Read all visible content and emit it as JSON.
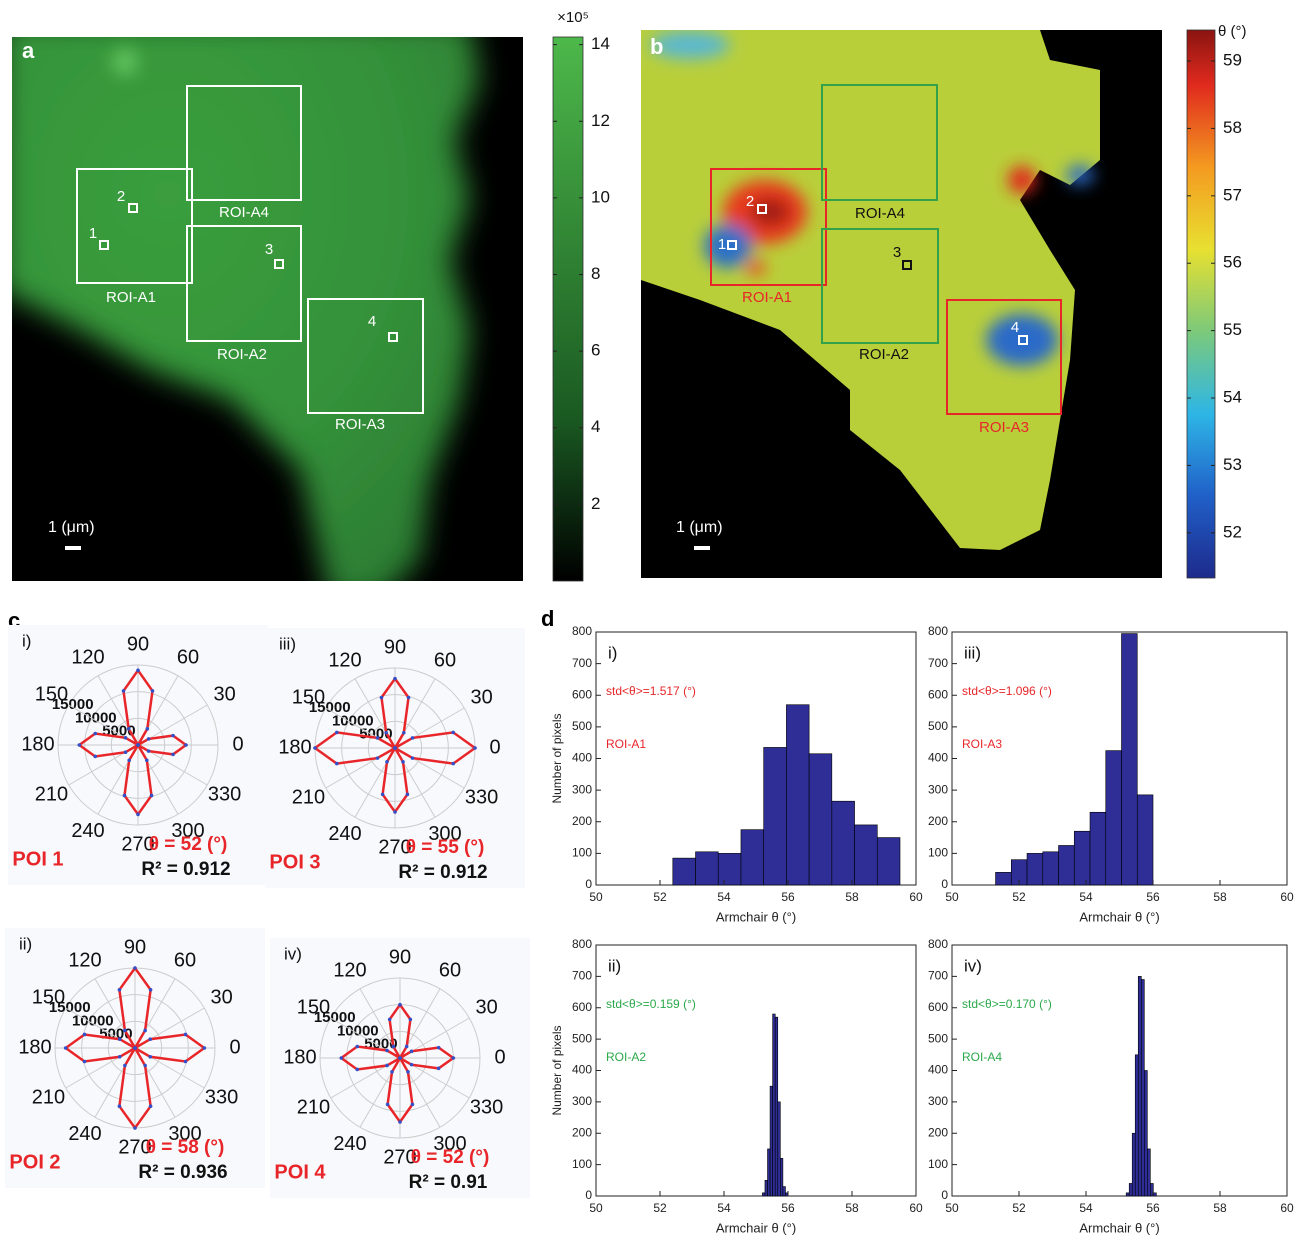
{
  "panel_labels": [
    "a",
    "b",
    "c",
    "d"
  ],
  "image_panels": [
    {
      "scale_bar": "1 (μm)",
      "rois": [
        "ROI-A1",
        "ROI-A2",
        "ROI-A3",
        "ROI-A4"
      ],
      "pois": [
        "1",
        "2",
        "3",
        "4"
      ],
      "colorbar": {
        "label": "×10⁵",
        "lim": [
          0,
          14.2
        ],
        "ticks": [
          2,
          4,
          6,
          8,
          10,
          12,
          14
        ]
      }
    },
    {
      "scale_bar": "1 (μm)",
      "rois": [
        "ROI-A1",
        "ROI-A2",
        "ROI-A3",
        "ROI-A4"
      ],
      "pois": [
        "1",
        "2",
        "3",
        "4"
      ],
      "colorbar": {
        "label": "θ (°)",
        "lim": [
          51.33,
          59.46
        ],
        "ticks": [
          52,
          53,
          54,
          55,
          56,
          57,
          58,
          59
        ]
      }
    }
  ],
  "chart_data": [
    {
      "type": "polar",
      "panel": "i)",
      "title": "POI 1",
      "annotations": [
        "θ = 52 (°)",
        "R² = 0.912"
      ],
      "color": "#e8262a",
      "angles": [
        0,
        15,
        30,
        45,
        60,
        75,
        90,
        105,
        120,
        135,
        150,
        165,
        180,
        195,
        210,
        225,
        240,
        255,
        270,
        285,
        300,
        315,
        330,
        345
      ],
      "values": [
        9000,
        6800,
        2300,
        0,
        3500,
        10500,
        14000,
        10500,
        3500,
        0,
        2700,
        8300,
        11000,
        8300,
        2700,
        0,
        3300,
        9800,
        13000,
        9800,
        3300,
        0,
        2300,
        6800
      ],
      "angle_ticks": [
        0,
        30,
        60,
        90,
        120,
        150,
        180,
        210,
        240,
        270,
        300,
        330
      ],
      "rlim": [
        0,
        15000
      ],
      "rticks": [
        5000,
        10000,
        15000
      ]
    },
    {
      "type": "polar",
      "panel": "ii)",
      "title": "POI 2",
      "annotations": [
        "θ = 58 (°)",
        "R² = 0.936"
      ],
      "color": "#e8262a",
      "angles": [
        0,
        15,
        30,
        45,
        60,
        75,
        90,
        105,
        120,
        135,
        150,
        165,
        180,
        195,
        210,
        225,
        240,
        255,
        270,
        285,
        300,
        315,
        330,
        345
      ],
      "values": [
        13000,
        9800,
        3300,
        0,
        3800,
        11300,
        15000,
        11300,
        3800,
        0,
        3300,
        9800,
        13000,
        9800,
        3300,
        0,
        3800,
        11300,
        15000,
        11300,
        3800,
        0,
        3300,
        9800
      ],
      "angle_ticks": [
        0,
        30,
        60,
        90,
        120,
        150,
        180,
        210,
        240,
        270,
        300,
        330
      ],
      "rlim": [
        0,
        15000
      ],
      "rticks": [
        5000,
        10000,
        15000
      ]
    },
    {
      "type": "polar",
      "panel": "iii)",
      "title": "POI 3",
      "annotations": [
        "θ = 55 (°)",
        "R² = 0.912"
      ],
      "color": "#e8262a",
      "angles": [
        0,
        15,
        30,
        45,
        60,
        75,
        90,
        105,
        120,
        135,
        150,
        165,
        180,
        195,
        210,
        225,
        240,
        255,
        270,
        285,
        300,
        315,
        330,
        345
      ],
      "values": [
        15000,
        11300,
        3800,
        0,
        3300,
        9800,
        13000,
        9800,
        3300,
        0,
        3800,
        11300,
        15000,
        11300,
        3800,
        0,
        3000,
        9000,
        12000,
        9000,
        3000,
        0,
        3800,
        11300
      ],
      "angle_ticks": [
        0,
        30,
        60,
        90,
        120,
        150,
        180,
        210,
        240,
        270,
        300,
        330
      ],
      "rlim": [
        0,
        15000
      ],
      "rticks": [
        5000,
        10000,
        15000
      ]
    },
    {
      "type": "polar",
      "panel": "iv)",
      "title": "POI 4",
      "annotations": [
        "θ = 52 (°)",
        "R² = 0.91"
      ],
      "color": "#e8262a",
      "angles": [
        0,
        15,
        30,
        45,
        60,
        75,
        90,
        105,
        120,
        135,
        150,
        165,
        180,
        195,
        210,
        225,
        240,
        255,
        270,
        285,
        300,
        315,
        330,
        345
      ],
      "values": [
        10000,
        7500,
        2500,
        0,
        2500,
        7500,
        10000,
        7500,
        2500,
        0,
        2800,
        8300,
        11000,
        8300,
        2800,
        0,
        3000,
        9000,
        12000,
        9000,
        3000,
        0,
        2500,
        7500
      ],
      "angle_ticks": [
        0,
        30,
        60,
        90,
        120,
        150,
        180,
        210,
        240,
        270,
        300,
        330
      ],
      "rlim": [
        0,
        15000
      ],
      "rticks": [
        5000,
        10000,
        15000
      ]
    },
    {
      "type": "histogram",
      "panel": "i)",
      "color": "#2e2e96",
      "bins": [
        52.4,
        53.11,
        53.82,
        54.53,
        55.24,
        55.95,
        56.66,
        57.37,
        58.08,
        58.79,
        59.5
      ],
      "values": [
        85,
        105,
        100,
        175,
        435,
        570,
        415,
        265,
        190,
        150
      ],
      "xlim": [
        50,
        60
      ],
      "xticks": [
        50,
        52,
        54,
        56,
        58,
        60
      ],
      "ylim": [
        0,
        800
      ],
      "yticks": [
        0,
        100,
        200,
        300,
        400,
        500,
        600,
        700,
        800
      ],
      "xlabel": "Armchair θ (°)",
      "ylabel": "Number of pixels",
      "annotations": [
        {
          "text": "std<θ>=1.517 (°)",
          "color": "#e8262a"
        },
        {
          "text": "ROI-A1",
          "color": "#e8262a"
        }
      ]
    },
    {
      "type": "histogram",
      "panel": "ii)",
      "color": "#2e2e96",
      "bins": [
        55.2,
        55.28,
        55.36,
        55.44,
        55.52,
        55.6,
        55.68,
        55.76,
        55.84,
        55.92,
        56.0
      ],
      "values": [
        10,
        50,
        150,
        350,
        580,
        570,
        300,
        120,
        30,
        10
      ],
      "xlim": [
        50,
        60
      ],
      "xticks": [
        50,
        52,
        54,
        56,
        58,
        60
      ],
      "ylim": [
        0,
        800
      ],
      "yticks": [
        0,
        100,
        200,
        300,
        400,
        500,
        600,
        700,
        800
      ],
      "xlabel": "Armchair θ (°)",
      "ylabel": "Number of pixels",
      "annotations": [
        {
          "text": "std<θ>=0.159 (°)",
          "color": "#2aa84a"
        },
        {
          "text": "ROI-A2",
          "color": "#2aa84a"
        }
      ]
    },
    {
      "type": "histogram",
      "panel": "iii)",
      "color": "#2e2e96",
      "bins": [
        51.3,
        51.77,
        52.24,
        52.71,
        53.18,
        53.65,
        54.12,
        54.59,
        55.06,
        55.53,
        56.0
      ],
      "values": [
        40,
        80,
        100,
        105,
        125,
        170,
        230,
        425,
        795,
        285
      ],
      "xlim": [
        50,
        60
      ],
      "xticks": [
        50,
        52,
        54,
        56,
        58,
        60
      ],
      "ylim": [
        0,
        800
      ],
      "yticks": [
        0,
        100,
        200,
        300,
        400,
        500,
        600,
        700,
        800
      ],
      "xlabel": "Armchair θ (°)",
      "annotations": [
        {
          "text": "std<θ>=1.096 (°)",
          "color": "#e8262a"
        },
        {
          "text": "ROI-A3",
          "color": "#e8262a"
        }
      ]
    },
    {
      "type": "histogram",
      "panel": "iv)",
      "color": "#2e2e96",
      "bins": [
        55.2,
        55.29,
        55.38,
        55.47,
        55.56,
        55.65,
        55.74,
        55.83,
        55.92,
        56.01,
        56.1
      ],
      "values": [
        10,
        40,
        200,
        450,
        700,
        690,
        400,
        150,
        40,
        10
      ],
      "xlim": [
        50,
        60
      ],
      "xticks": [
        50,
        52,
        54,
        56,
        58,
        60
      ],
      "ylim": [
        0,
        800
      ],
      "yticks": [
        0,
        100,
        200,
        300,
        400,
        500,
        600,
        700,
        800
      ],
      "xlabel": "Armchair θ (°)",
      "annotations": [
        {
          "text": "std<θ>=0.170 (°)",
          "color": "#2aa84a"
        },
        {
          "text": "ROI-A4",
          "color": "#2aa84a"
        }
      ]
    }
  ]
}
